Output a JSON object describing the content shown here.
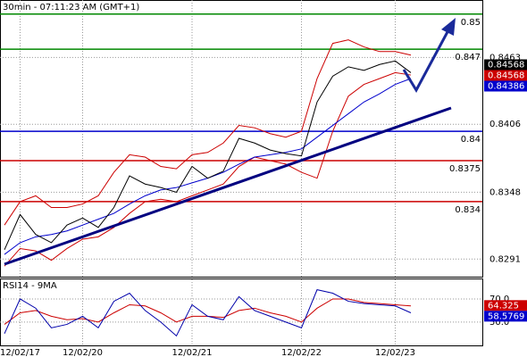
{
  "chart_data": [
    {
      "type": "line",
      "title": "30min - 07:11:23 AM (GMT+1)",
      "categories": [
        null,
        "12/02/17",
        null,
        null,
        null,
        "12/02/20",
        null,
        null,
        null,
        null,
        null,
        null,
        "12/02/21",
        null,
        null,
        null,
        null,
        null,
        null,
        "12/02/22",
        null,
        null,
        null,
        null,
        null,
        "12/02/23",
        null
      ],
      "series": [
        {
          "color": "#cc0000",
          "values": [
            0.832,
            0.834,
            0.8345,
            0.8335,
            0.8335,
            0.8338,
            0.8345,
            0.8365,
            0.838,
            0.8378,
            0.837,
            0.8368,
            0.838,
            0.8382,
            0.839,
            0.8405,
            0.8403,
            0.8398,
            0.8395,
            0.84,
            0.8445,
            0.8475,
            0.8478,
            0.8472,
            0.8468,
            0.8468,
            0.8465
          ]
        },
        {
          "color": "#cc0000",
          "values": [
            0.8285,
            0.83,
            0.8298,
            0.829,
            0.83,
            0.8308,
            0.831,
            0.8318,
            0.833,
            0.834,
            0.8342,
            0.834,
            0.8345,
            0.835,
            0.8355,
            0.837,
            0.8378,
            0.8375,
            0.8372,
            0.8365,
            0.836,
            0.84,
            0.843,
            0.844,
            0.8445,
            0.845,
            0.8448
          ]
        },
        {
          "color": "#0000cc",
          "values": [
            0.8295,
            0.8305,
            0.831,
            0.8312,
            0.8315,
            0.832,
            0.8325,
            0.833,
            0.8338,
            0.8345,
            0.835,
            0.8352,
            0.8356,
            0.836,
            0.8365,
            0.8372,
            0.8378,
            0.838,
            0.8382,
            0.8385,
            0.8395,
            0.8405,
            0.8415,
            0.8425,
            0.8432,
            0.844,
            0.8445
          ]
        },
        {
          "color": "#000000",
          "values": [
            0.8299,
            0.8329,
            0.8312,
            0.8305,
            0.832,
            0.8326,
            0.8318,
            0.8335,
            0.8362,
            0.8355,
            0.8352,
            0.8348,
            0.837,
            0.836,
            0.8366,
            0.8394,
            0.839,
            0.8384,
            0.8381,
            0.8379,
            0.8425,
            0.8447,
            0.8455,
            0.8452,
            0.8457,
            0.846,
            0.845
          ]
        }
      ],
      "ylim": [
        0.8276,
        0.8512
      ],
      "yticks": [
        0.8463,
        0.8406,
        0.8348,
        0.8291
      ],
      "levels": [
        {
          "value": 0.85,
          "color": "#008800"
        },
        {
          "value": 0.847,
          "color": "#008800"
        },
        {
          "value": 0.84,
          "color": "#0000cc"
        },
        {
          "value": 0.8375,
          "color": "#cc0000"
        },
        {
          "value": 0.834,
          "color": "#cc0000"
        }
      ],
      "price_tags": [
        {
          "value": 0.84568,
          "color": "#000000"
        },
        {
          "value": 0.84568,
          "color": "#cc0000"
        },
        {
          "value": 0.84386,
          "color": "#0000cc"
        }
      ]
    },
    {
      "type": "line",
      "title": "RSI14 - 9MA",
      "series": [
        {
          "color": "#cc0000",
          "values": [
            48,
            58,
            60,
            55,
            52,
            53,
            50,
            58,
            65,
            64,
            58,
            50,
            55,
            55,
            54,
            60,
            62,
            58,
            55,
            50,
            62,
            70,
            70,
            67,
            66,
            65,
            64
          ]
        },
        {
          "color": "#0000aa",
          "values": [
            40,
            70,
            62,
            45,
            48,
            55,
            45,
            68,
            75,
            60,
            50,
            38,
            65,
            55,
            52,
            72,
            60,
            55,
            50,
            45,
            78,
            75,
            68,
            66,
            65,
            64,
            58
          ]
        }
      ],
      "ylim": [
        29,
        87
      ],
      "yticks": [
        {
          "value": 50,
          "label": "50.0"
        },
        {
          "value": 70,
          "label": "70.0"
        }
      ],
      "price_tags": [
        {
          "value": 64.325,
          "color": "#cc0000"
        },
        {
          "value": 58.5769,
          "color": "#0000cc"
        }
      ]
    }
  ]
}
